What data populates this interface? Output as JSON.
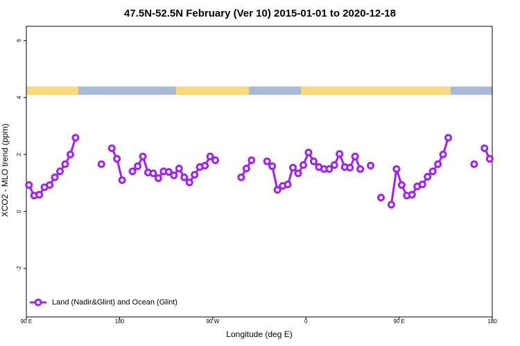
{
  "chart_data": {
    "type": "line",
    "title": "47.5N-52.5N February (Ver 10)   2015-01-01 to 2020-12-18",
    "xlabel": "Longitude (deg E)",
    "ylabel": "XCO2 - MLO trend (ppm)",
    "xlim": [
      90,
      540
    ],
    "ylim": [
      -3.7,
      6.5
    ],
    "xticks": [
      {
        "value": 90,
        "label": "90 E"
      },
      180,
      {
        "value": 270,
        "label": "90 W"
      },
      {
        "value": 360,
        "label": "0"
      },
      {
        "value": 450,
        "label": "90 E"
      },
      {
        "value": 540,
        "label": "180"
      }
    ],
    "yticks": [
      -2,
      0,
      2,
      4,
      6
    ],
    "legend": "bottom-left",
    "x": [
      92.5,
      97.5,
      102.5,
      107.5,
      112.5,
      117.5,
      122.5,
      127.5,
      132.5,
      137.5,
      142.5,
      147.5,
      152.5,
      157.5,
      162.5,
      167.5,
      172.5,
      177.5,
      182.5,
      187.5,
      192.5,
      197.5,
      202.5,
      207.5,
      212.5,
      217.5,
      222.5,
      227.5,
      232.5,
      237.5,
      242.5,
      247.5,
      252.5,
      257.5,
      262.5,
      267.5,
      272.5,
      277.5,
      282.5,
      287.5,
      292.5,
      297.5,
      302.5,
      307.5,
      312.5,
      317.5,
      322.5,
      327.5,
      332.5,
      337.5,
      342.5,
      347.5,
      352.5,
      357.5,
      362.5,
      367.5,
      372.5,
      377.5,
      382.5,
      387.5,
      392.5,
      397.5,
      402.5,
      407.5,
      412.5,
      417.5,
      422.5,
      427.5,
      432.5,
      437.5,
      442.5,
      447.5,
      452.5,
      457.5,
      462.5,
      467.5,
      472.5,
      477.5,
      482.5,
      487.5,
      492.5,
      497.5,
      502.5,
      507.5,
      512.5,
      517.5,
      522.5,
      527.5,
      532.5,
      537.5
    ],
    "series": [
      {
        "name": "Land (Nadir&Glint) and Ocean (Glint)",
        "color": "#a020f0",
        "values": [
          0.93,
          0.56,
          0.59,
          0.85,
          0.93,
          1.2,
          1.41,
          1.66,
          2.0,
          2.59,
          null,
          null,
          null,
          null,
          1.66,
          null,
          2.22,
          1.85,
          1.1,
          null,
          1.41,
          1.59,
          1.93,
          1.37,
          1.34,
          1.17,
          1.41,
          1.39,
          1.27,
          1.51,
          1.2,
          1.02,
          1.29,
          1.56,
          1.61,
          1.93,
          1.8,
          null,
          null,
          null,
          null,
          1.2,
          1.51,
          1.8,
          null,
          null,
          1.76,
          1.59,
          0.76,
          0.9,
          0.95,
          1.54,
          1.34,
          1.63,
          2.07,
          1.76,
          1.56,
          1.49,
          1.49,
          1.63,
          2.02,
          1.56,
          1.54,
          1.93,
          1.49,
          null,
          1.61,
          null,
          0.49,
          null,
          0.24,
          1.49,
          0.93,
          0.56,
          0.59,
          0.88,
          0.95,
          1.22,
          1.41,
          1.66,
          2.0,
          2.59,
          null,
          null,
          null,
          null,
          1.66,
          null,
          2.22,
          1.85
        ]
      }
    ]
  }
}
